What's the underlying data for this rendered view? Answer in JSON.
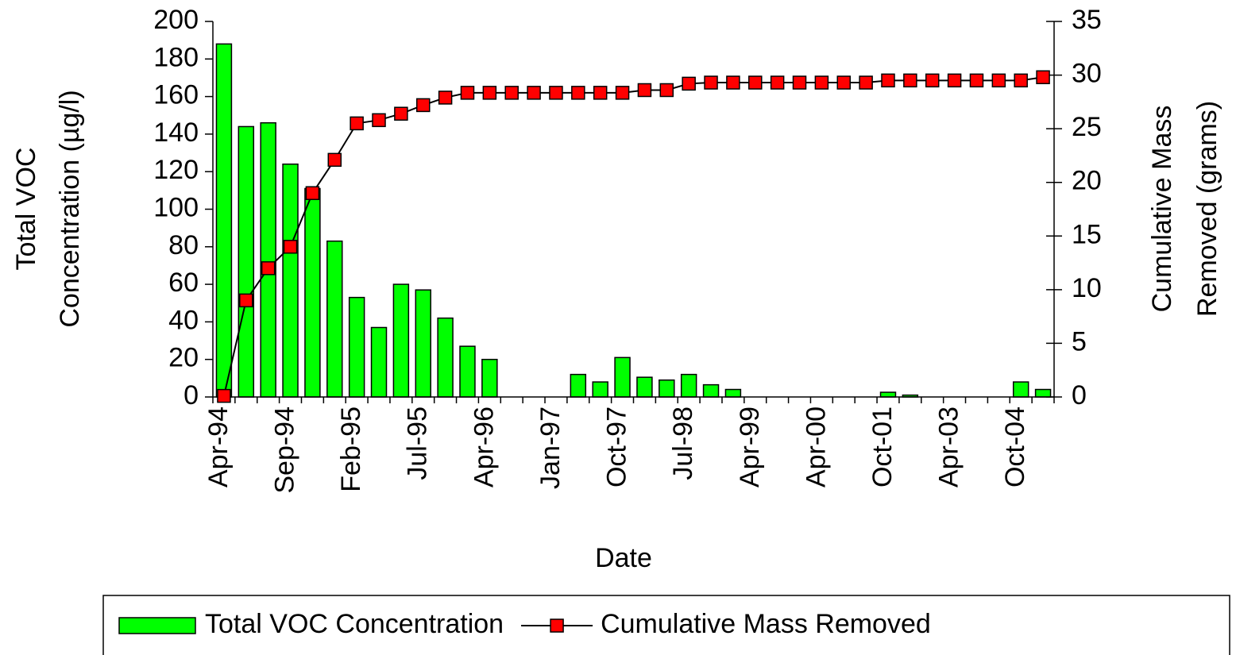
{
  "chart_data": {
    "type": "bar-line",
    "ylabel": [
      "Total VOC",
      "Concentration (µg/l)"
    ],
    "y2label": [
      "Cumulative Mass",
      "Removed (grams)"
    ],
    "xlabel": "Date",
    "categories": [
      "Apr-94",
      null,
      null,
      "Sep-94",
      null,
      null,
      "Feb-95",
      null,
      null,
      "Jul-95",
      null,
      null,
      "Apr-96",
      null,
      null,
      "Jan-97",
      null,
      null,
      "Oct-97",
      null,
      null,
      "Jul-98",
      null,
      null,
      "Apr-99",
      null,
      null,
      "Apr-00",
      null,
      null,
      "Oct-01",
      null,
      null,
      "Apr-03",
      null,
      null,
      "Oct-04",
      null
    ],
    "series": [
      {
        "name": "Total VOC Concentration",
        "color": "#00ff00",
        "type": "bar",
        "values": [
          188,
          144,
          146,
          124,
          111,
          83,
          53,
          37,
          60,
          57,
          42,
          27,
          20,
          null,
          null,
          null,
          12,
          8,
          21,
          10.5,
          9,
          12,
          6.5,
          4,
          null,
          null,
          null,
          null,
          null,
          null,
          2.5,
          1,
          null,
          null,
          null,
          null,
          8,
          4
        ]
      },
      {
        "name": "Cumulative Mass Removed",
        "color": "#ff0000",
        "type": "line",
        "axis": "y2",
        "values": [
          0.1,
          9,
          12,
          14,
          19,
          22.1,
          25.5,
          25.8,
          26.4,
          27.2,
          27.9,
          28.35,
          28.35,
          28.35,
          28.35,
          28.35,
          28.35,
          28.35,
          28.35,
          28.6,
          28.6,
          29.2,
          29.3,
          29.3,
          29.3,
          29.3,
          29.3,
          29.3,
          29.3,
          29.3,
          29.5,
          29.5,
          29.5,
          29.5,
          29.5,
          29.5,
          29.5,
          29.8
        ]
      }
    ],
    "ylim": [
      0,
      200
    ],
    "yticks": [
      0,
      20,
      40,
      60,
      80,
      100,
      120,
      140,
      160,
      180,
      200
    ],
    "y2lim": [
      0,
      35
    ],
    "y2ticks": [
      0,
      5,
      10,
      15,
      20,
      25,
      30,
      35
    ],
    "legend": "bottom"
  }
}
